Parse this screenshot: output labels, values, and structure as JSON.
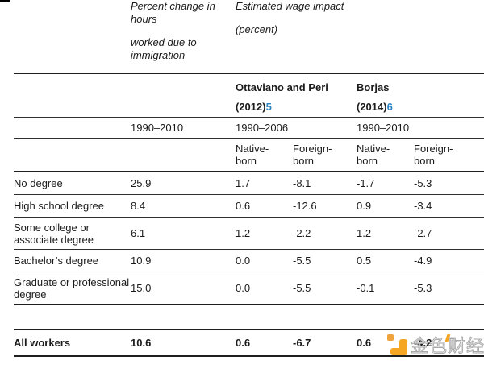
{
  "chart_data": {
    "type": "table",
    "col_group_headers": {
      "hours_line1": "Percent change in hours",
      "hours_line2": "worked due to immigration",
      "wage_line1": "Estimated wage impact",
      "wage_line2": "(percent)"
    },
    "studies": [
      {
        "name": "Ottaviano and Peri (2012)",
        "footnote": "5"
      },
      {
        "name": "Borjas (2014)",
        "footnote": "6"
      }
    ],
    "periods": [
      "1990–2010",
      "1990–2006",
      "1990–2010"
    ],
    "subheaders": [
      "Native-born",
      "Foreign-born",
      "Native-born",
      "Foreign-born"
    ],
    "rows": [
      {
        "label": "No degree",
        "values": [
          "25.9",
          "1.7",
          "-8.1",
          "-1.7",
          "-5.3"
        ]
      },
      {
        "label": "High school degree",
        "values": [
          "8.4",
          "0.6",
          "-12.6",
          "0.9",
          "-3.4"
        ]
      },
      {
        "label": "Some college or associate degree",
        "values": [
          "6.1",
          "1.2",
          "-2.2",
          "1.2",
          "-2.7"
        ]
      },
      {
        "label": "Bachelor’s degree",
        "values": [
          "10.9",
          "0.0",
          "-5.5",
          "0.5",
          "-4.9"
        ]
      },
      {
        "label": "Graduate or professional degree",
        "values": [
          "15.0",
          "0.0",
          "-5.5",
          "-0.1",
          "-5.3"
        ]
      }
    ],
    "total_row": {
      "label": "All workers",
      "values": [
        "10.6",
        "0.6",
        "-6.7",
        "0.6",
        "-4.2"
      ]
    },
    "footnote_color": "#2e86c1",
    "layout": {
      "grid": "horizontal-rules-only",
      "legend": "none"
    }
  },
  "watermark": {
    "text": "金色财经",
    "brand_color": "#F5A623"
  }
}
